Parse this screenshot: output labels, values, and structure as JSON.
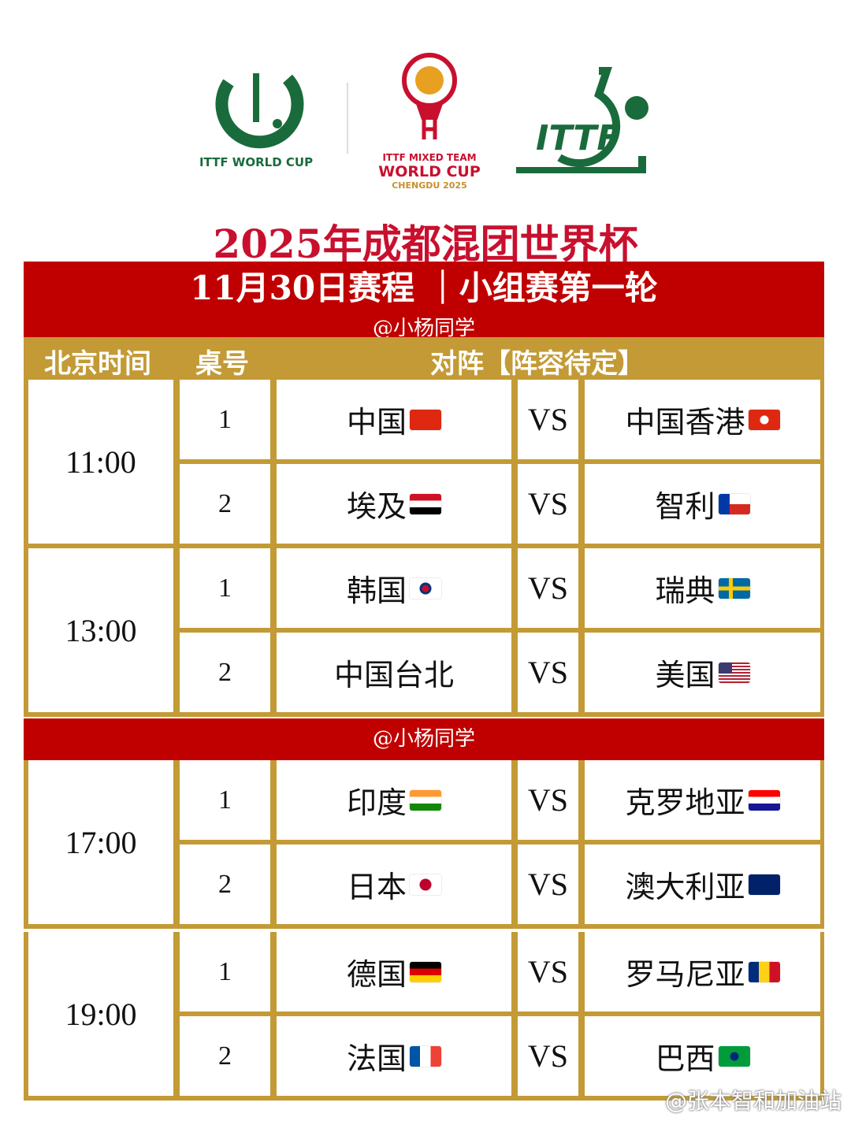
{
  "logos": {
    "left": "ITTF WORLD CUP",
    "center_line1": "ITTF MIXED TEAM",
    "center_line2": "WORLD CUP",
    "center_line3": "CHENGDU 2025",
    "right": "ITTF"
  },
  "title": "2025年成都混团世界杯",
  "subtitle": "11月30日赛程 ｜小组赛第一轮",
  "credit": "@小杨同学",
  "headers": {
    "time": "北京时间",
    "table": "桌号",
    "matchup": "对阵【阵容待定】"
  },
  "vs_label": "VS",
  "groups": [
    {
      "time": "11:00",
      "matches": [
        {
          "table": "1",
          "a": "中国",
          "a_flag": "cn",
          "b": "中国香港",
          "b_flag": "hk"
        },
        {
          "table": "2",
          "a": "埃及",
          "a_flag": "eg",
          "b": "智利",
          "b_flag": "cl"
        }
      ]
    },
    {
      "time": "13:00",
      "matches": [
        {
          "table": "1",
          "a": "韩国",
          "a_flag": "kr",
          "b": "瑞典",
          "b_flag": "se"
        },
        {
          "table": "2",
          "a": "中国台北",
          "a_flag": "",
          "b": "美国",
          "b_flag": "us"
        }
      ]
    },
    {
      "time": "17:00",
      "matches": [
        {
          "table": "1",
          "a": "印度",
          "a_flag": "in",
          "b": "克罗地亚",
          "b_flag": "hr"
        },
        {
          "table": "2",
          "a": "日本",
          "a_flag": "jp",
          "b": "澳大利亚",
          "b_flag": "au"
        }
      ]
    },
    {
      "time": "19:00",
      "matches": [
        {
          "table": "1",
          "a": "德国",
          "a_flag": "de",
          "b": "罗马尼亚",
          "b_flag": "ro"
        },
        {
          "table": "2",
          "a": "法国",
          "a_flag": "fr",
          "b": "巴西",
          "b_flag": "br"
        }
      ]
    }
  ],
  "watermark": "@张本智和加油站",
  "colors": {
    "red": "#c00000",
    "gold": "#c39a35",
    "title_red": "#c8102e",
    "ittf_green": "#1a6b3c"
  }
}
